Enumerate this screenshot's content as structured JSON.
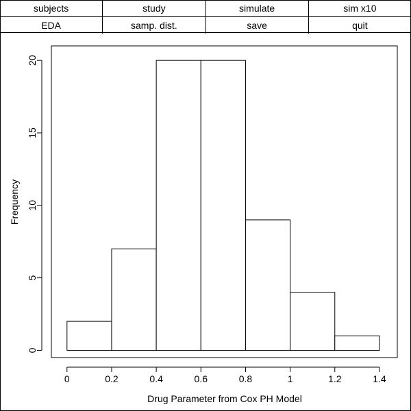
{
  "menu": {
    "row1": [
      "subjects",
      "study",
      "simulate",
      "sim x10"
    ],
    "row2": [
      "EDA",
      "samp. dist.",
      "save",
      "quit"
    ]
  },
  "chart_data": {
    "type": "bar",
    "subtype": "histogram",
    "bins": [
      {
        "x0": 0.0,
        "x1": 0.2,
        "count": 2
      },
      {
        "x0": 0.2,
        "x1": 0.4,
        "count": 7
      },
      {
        "x0": 0.4,
        "x1": 0.6,
        "count": 20
      },
      {
        "x0": 0.6,
        "x1": 0.8,
        "count": 20
      },
      {
        "x0": 0.8,
        "x1": 1.0,
        "count": 9
      },
      {
        "x0": 1.0,
        "x1": 1.2,
        "count": 4
      },
      {
        "x0": 1.2,
        "x1": 1.4,
        "count": 1
      }
    ],
    "title": "",
    "xlabel": "Drug Parameter from Cox PH Model",
    "ylabel": "Frequency",
    "xlim": [
      -0.07,
      1.48
    ],
    "ylim": [
      -0.5,
      21
    ],
    "xticks": [
      0,
      0.2,
      0.4,
      0.6,
      0.8,
      1,
      1.2,
      1.4
    ],
    "xtick_labels": [
      "0",
      "0.2",
      "0.4",
      "0.6",
      "0.8",
      "1",
      "1.2",
      "1.4"
    ],
    "yticks": [
      0,
      5,
      10,
      15,
      20
    ],
    "ytick_labels": [
      "0",
      "5",
      "10",
      "15",
      "20"
    ],
    "grid": false,
    "bar_fill": "#ffffff",
    "bar_stroke": "#000000"
  }
}
